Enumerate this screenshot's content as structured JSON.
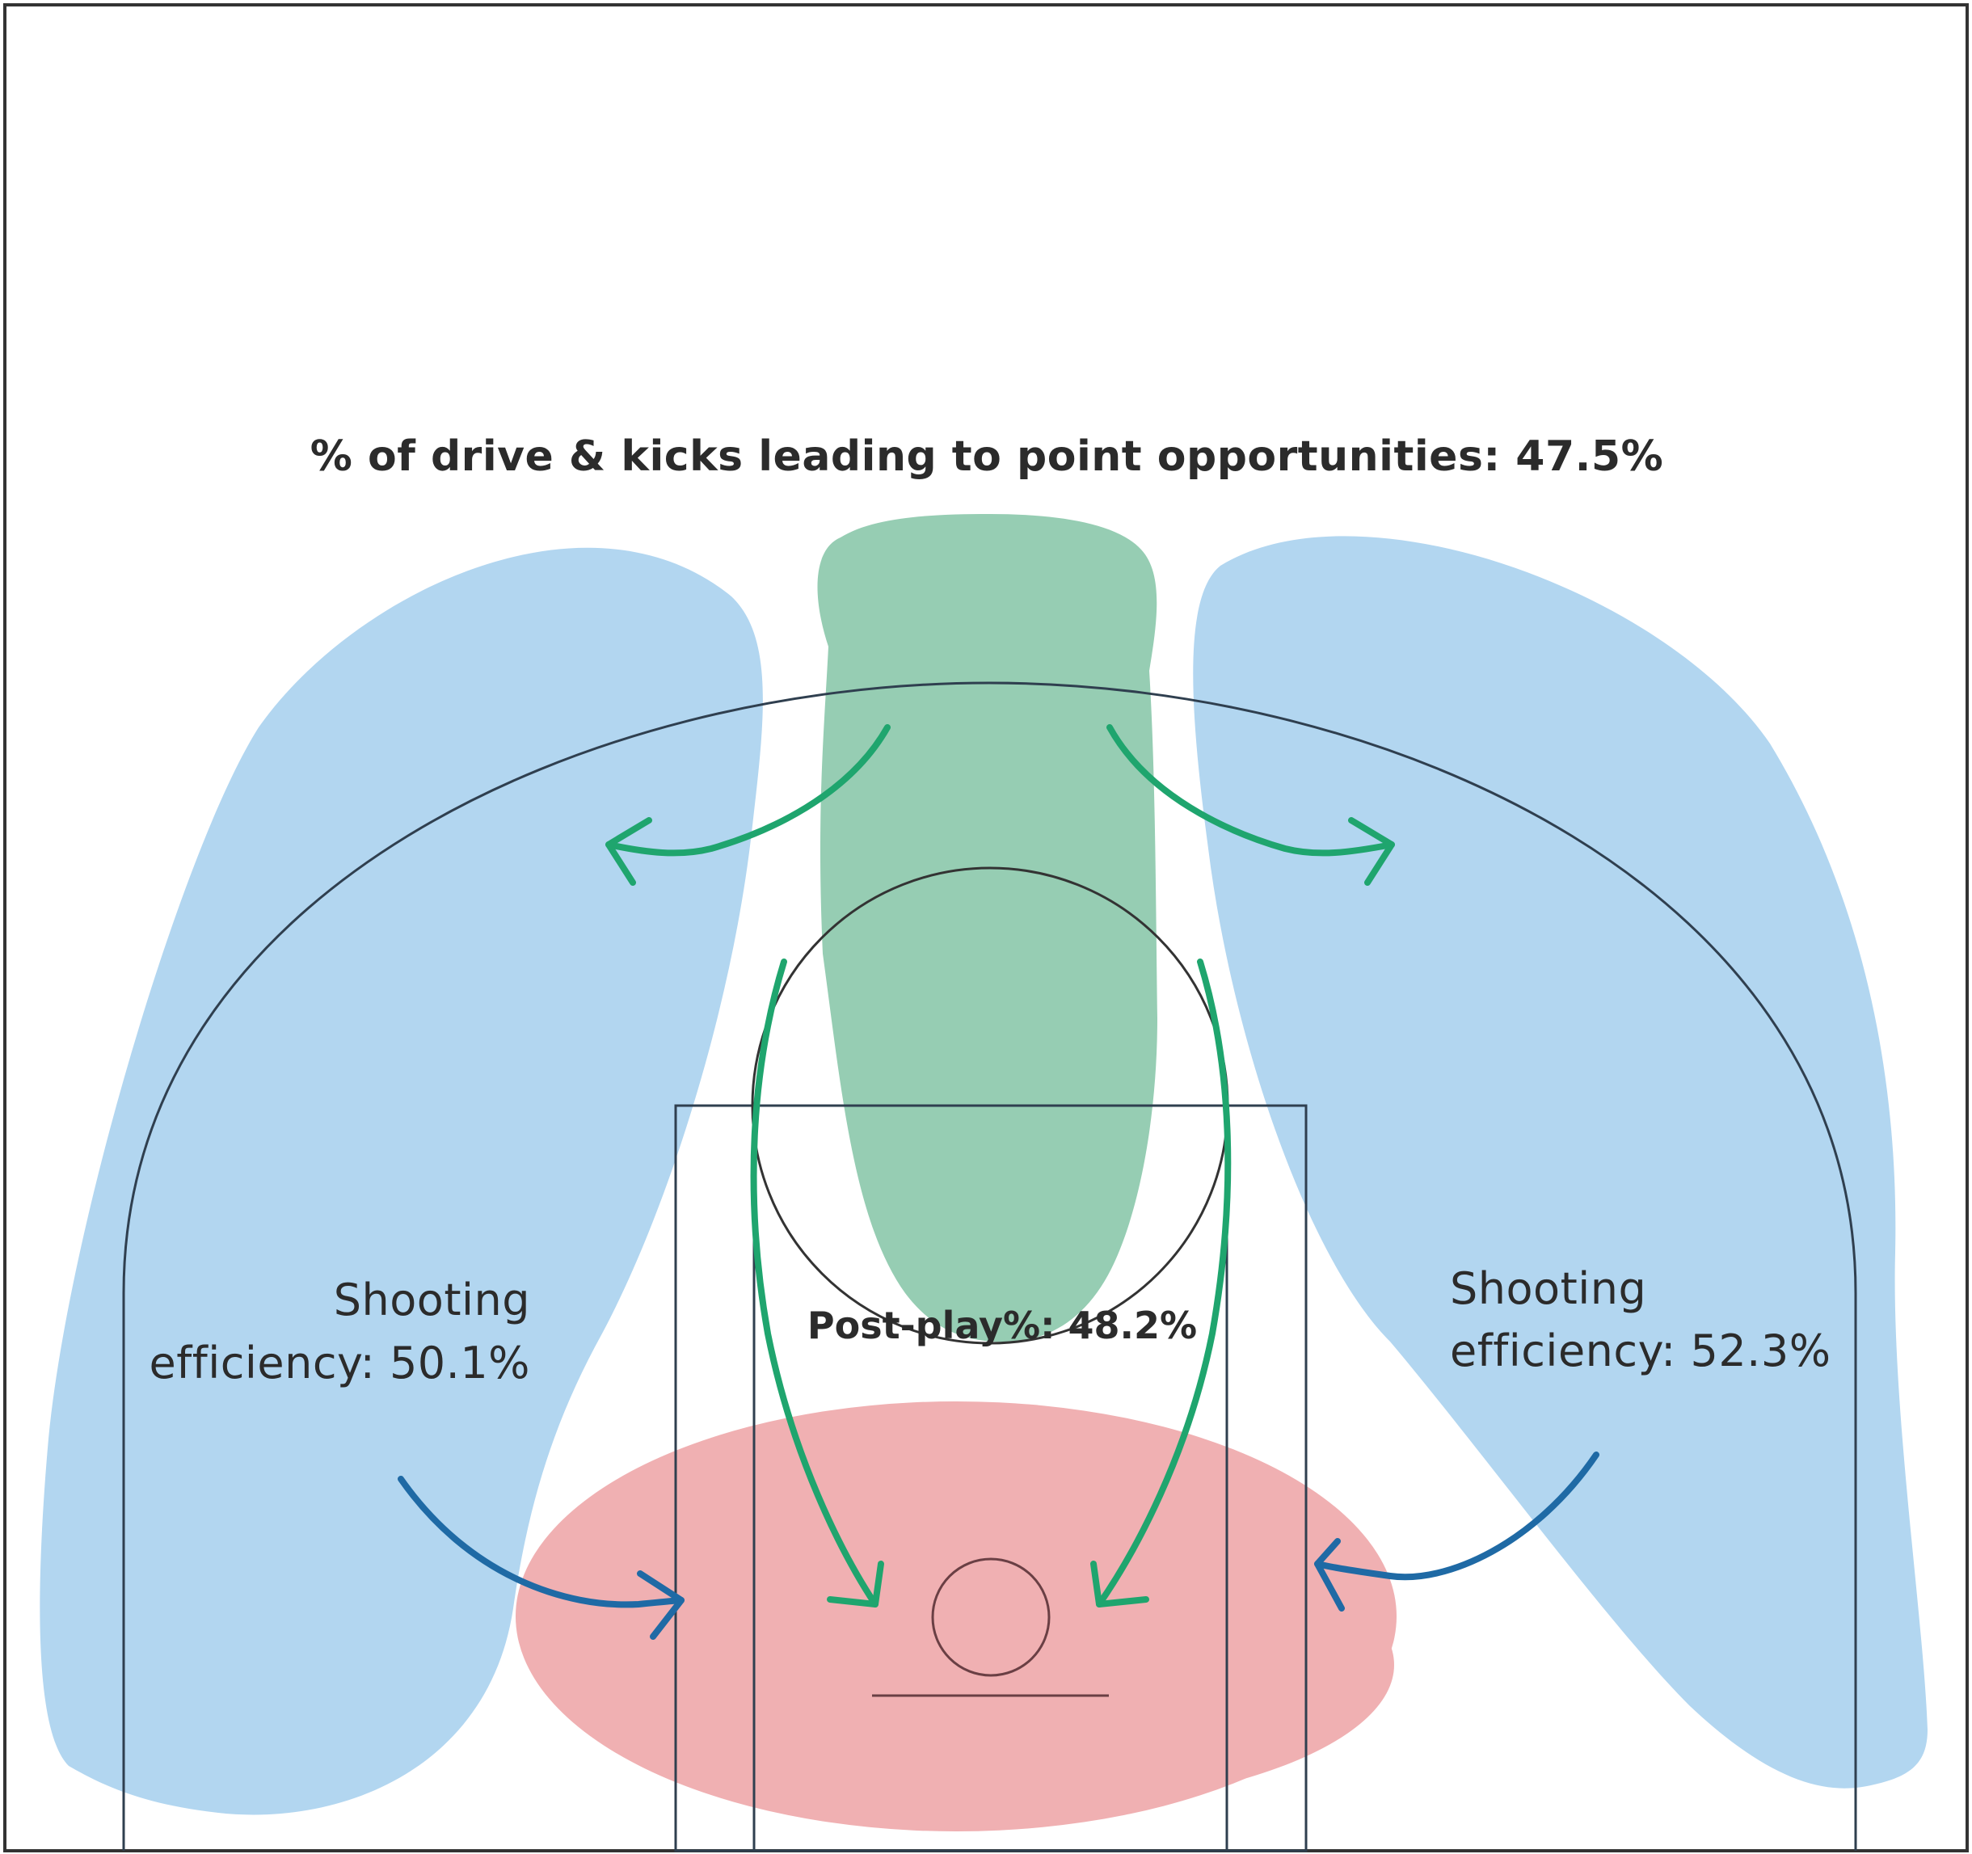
{
  "labels": {
    "title": "% of drive & kicks leading to point opportunities: 47.5%",
    "left_efficiency_line1": "Shooting",
    "left_efficiency_line2": "efficiency: 50.1%",
    "right_efficiency_line1": "Shooting",
    "right_efficiency_line2": "efficiency: 52.3%",
    "post_play": "Post-play%: 48.2%"
  },
  "colors": {
    "left_wing_zone": "#b2d6f0",
    "right_wing_zone": "#b2d6f0",
    "top_key_zone": "#96cdb3",
    "paint_zone": "#f0b0b2",
    "green_arrows": "#1fa56e",
    "blue_arrows": "#1f6aa5",
    "court_lines": "#2f3f4f",
    "text": "#2b2b2b"
  }
}
